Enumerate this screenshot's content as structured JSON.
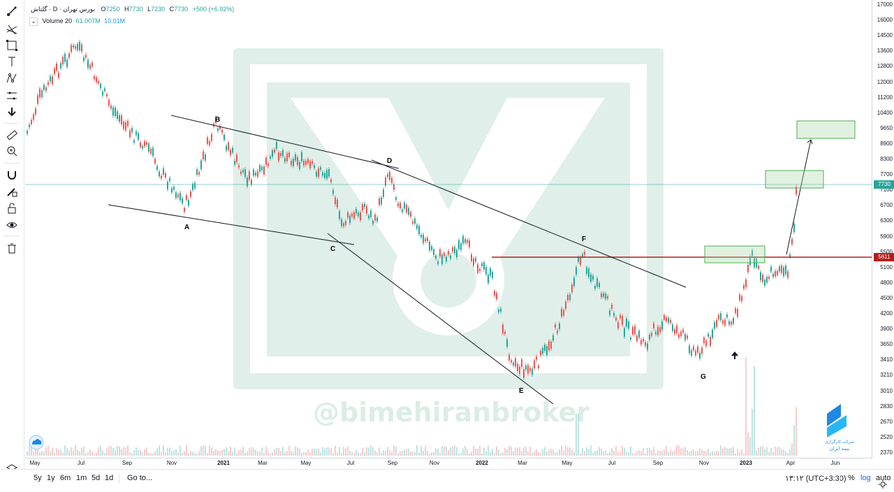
{
  "symbol": {
    "name": "گلتاش",
    "interval": "D",
    "exchange": "بورس تهران",
    "o_label": "O",
    "o_value": "7250",
    "h_label": "H",
    "h_value": "7730",
    "l_label": "L",
    "l_value": "7230",
    "c_label": "C",
    "c_value": "7730",
    "change": "+500 (+6.92%)"
  },
  "volume": {
    "label": "Volume 20",
    "v1": "61.007M",
    "v2": "10.01M"
  },
  "price_axis": {
    "ticks": [
      "17000",
      "16000",
      "14500",
      "13600",
      "12800",
      "12000",
      "11200",
      "10400",
      "9650",
      "8900",
      "8300",
      "7700",
      "7100",
      "6700",
      "6300",
      "5900",
      "5500",
      "5100",
      "4800",
      "4500",
      "4200",
      "3900",
      "3650",
      "3410",
      "3210",
      "3010",
      "2830",
      "2670",
      "2520",
      "2370"
    ],
    "current_price": "7730",
    "level_price": "5611"
  },
  "time_axis": [
    "May",
    "Jul",
    "Sep",
    "Nov",
    "2021",
    "Mar",
    "May",
    "Jul",
    "Sep",
    "Nov",
    "2022",
    "Mar",
    "May",
    "Jul",
    "Sep",
    "Nov",
    "2023",
    "Apr",
    "Jun"
  ],
  "annotations": [
    "A",
    "B",
    "C",
    "D",
    "E",
    "F",
    "G"
  ],
  "watermark": {
    "handle": "@bimehiranbroker",
    "company_line1": "شرکت کارگزاری",
    "company_line2": "بیمه ایران"
  },
  "bottom": {
    "ranges": [
      "5y",
      "1y",
      "6m",
      "1m",
      "5d",
      "1d"
    ],
    "goto": "Go to...",
    "time": "۱۳:۱۲ (UTC+3:30)",
    "percent": "%",
    "log": "log",
    "auto": "auto"
  },
  "colors": {
    "up": "#26a69a",
    "down": "#ef5350",
    "level": "#b71c1c",
    "current": "#26a69a",
    "box": "#4caf50"
  },
  "icons": [
    "cross-cursor-icon",
    "trend-line-icon",
    "fib-icon",
    "rectangle-icon",
    "text-icon",
    "pattern-icon",
    "measure-icon",
    "arrow-down-icon",
    "ruler-icon",
    "zoom-icon",
    "magnet-icon",
    "lock-drawings-icon",
    "lock-icon",
    "eye-icon",
    "trash-icon",
    "layers-icon"
  ]
}
